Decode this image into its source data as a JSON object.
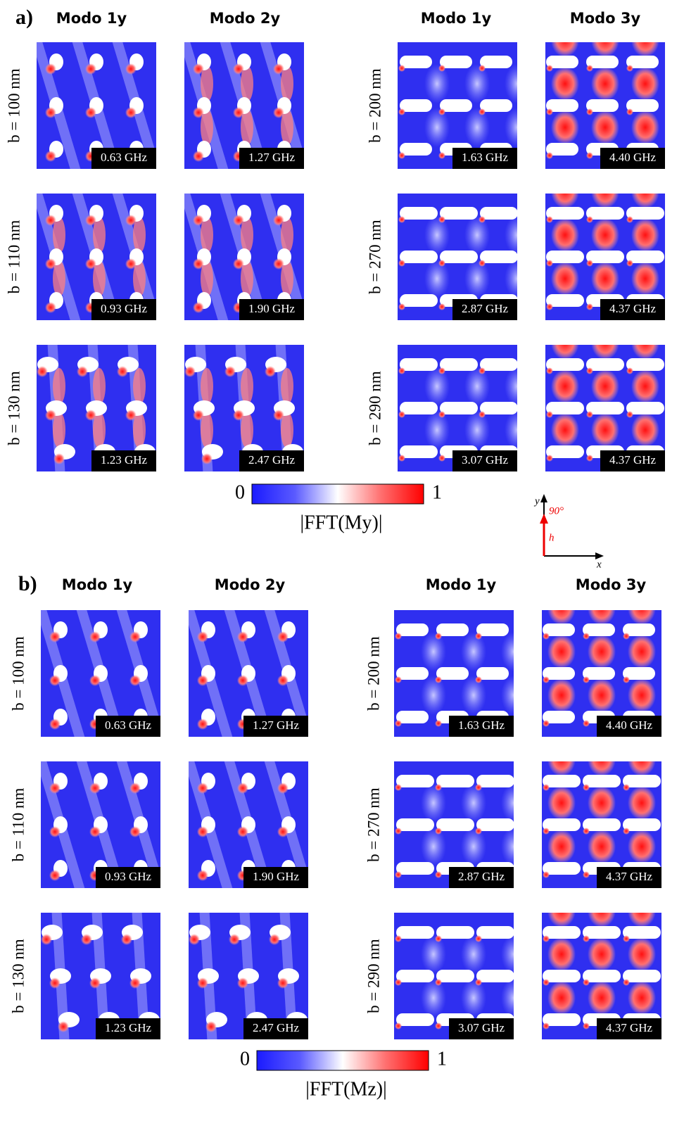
{
  "figure": {
    "groups": [
      {
        "label": "a)",
        "columns": [
          "Modo 1y",
          "Modo 2y",
          "Modo 1y",
          "Modo 3y"
        ],
        "left_rows": [
          "b = 100 nm",
          "b = 110 nm",
          "b = 130 nm"
        ],
        "right_rows": [
          "b = 200 nm",
          "b = 270 nm",
          "b = 290 nm"
        ],
        "frequencies": [
          [
            "0.63 GHz",
            "1.27 GHz",
            "1.63 GHz",
            "4.40 GHz"
          ],
          [
            "0.93 GHz",
            "1.90 GHz",
            "2.87 GHz",
            "4.37 GHz"
          ],
          [
            "1.23 GHz",
            "2.47 GHz",
            "3.07 GHz",
            "4.37 GHz"
          ]
        ],
        "colorbar": {
          "min": 0,
          "max": 1,
          "title": "|FFT(My)|"
        }
      },
      {
        "label": "b)",
        "columns": [
          "Modo 1y",
          "Modo 2y",
          "Modo 1y",
          "Modo 3y"
        ],
        "left_rows": [
          "b = 100 nm",
          "b = 110 nm",
          "b = 130 nm"
        ],
        "right_rows": [
          "b = 200 nm",
          "b = 270 nm",
          "b = 290 nm"
        ],
        "frequencies": [
          [
            "0.63 GHz",
            "1.27 GHz",
            "1.63 GHz",
            "4.40 GHz"
          ],
          [
            "0.93 GHz",
            "1.90 GHz",
            "2.87 GHz",
            "4.37 GHz"
          ],
          [
            "1.23 GHz",
            "2.47 GHz",
            "3.07 GHz",
            "4.37 GHz"
          ]
        ],
        "colorbar": {
          "min": 0,
          "max": 1,
          "title": "|FFT(Mz)|"
        }
      }
    ],
    "inset": {
      "y_axis": "y",
      "x_axis": "x",
      "field": "h",
      "angle": "90°"
    }
  }
}
